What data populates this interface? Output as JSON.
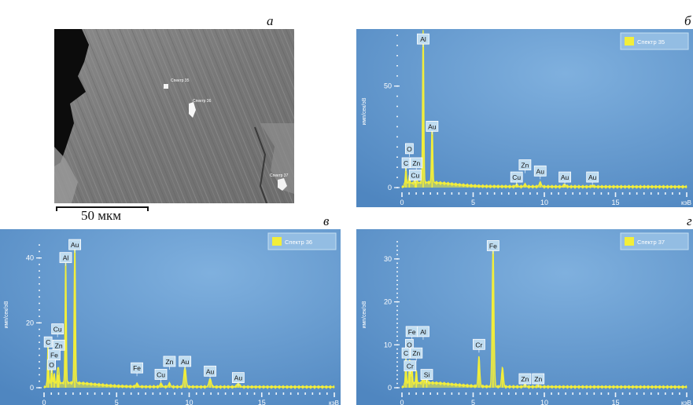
{
  "panels": {
    "a": {
      "letter": "а"
    },
    "b": {
      "letter": "б"
    },
    "v": {
      "letter": "в"
    },
    "g": {
      "letter": "г"
    }
  },
  "sem_image": {
    "scale_label": "50 мкм",
    "spot_labels": [
      "Спектр 35",
      "Спектр 36",
      "Спектр 37"
    ]
  },
  "colors": {
    "plot_bg_light": "#7fb0de",
    "plot_bg_dark": "#4f86c0",
    "spectrum_line": "#f2ee3a",
    "legend_swatch": "#f2ee3a",
    "label_box": "#bfdcf0",
    "axis_text": "#ffffff"
  },
  "chart_data": [
    {
      "panel": "б",
      "type": "line",
      "legend": "Спектр 35",
      "ylabel": "имп/сек/эВ",
      "xlabel": "кэВ",
      "xlim": [
        0,
        20
      ],
      "ylim": [
        0,
        75
      ],
      "xticks": [
        0,
        5,
        10,
        15
      ],
      "yticks": [
        0,
        50
      ],
      "peaks": [
        {
          "label": "C",
          "x": 0.28,
          "y": 8
        },
        {
          "label": "O",
          "x": 0.52,
          "y": 4
        },
        {
          "label": "Cu",
          "x": 0.93,
          "y": 3
        },
        {
          "label": "Zn",
          "x": 1.01,
          "y": 3
        },
        {
          "label": "Al",
          "x": 1.49,
          "y": 75
        },
        {
          "label": "Au",
          "x": 2.12,
          "y": 29
        },
        {
          "label": "Cu",
          "x": 8.05,
          "y": 1
        },
        {
          "label": "Zn",
          "x": 8.64,
          "y": 1
        },
        {
          "label": "Au",
          "x": 9.71,
          "y": 2
        },
        {
          "label": "Au",
          "x": 11.44,
          "y": 1
        },
        {
          "label": "Au",
          "x": 13.38,
          "y": 0.5
        }
      ],
      "peak_labels": [
        {
          "text": "Al",
          "x": 1.49,
          "y": 73
        },
        {
          "text": "Au",
          "x": 2.12,
          "y": 30
        },
        {
          "text": "O",
          "x": 0.52,
          "y": 19
        },
        {
          "text": "C",
          "x": 0.28,
          "y": 12
        },
        {
          "text": "Zn",
          "x": 1.01,
          "y": 12
        },
        {
          "text": "Cu",
          "x": 0.93,
          "y": 6
        },
        {
          "text": "Zn",
          "x": 8.64,
          "y": 11
        },
        {
          "text": "Au",
          "x": 9.71,
          "y": 8
        },
        {
          "text": "Cu",
          "x": 8.05,
          "y": 5
        },
        {
          "text": "Au",
          "x": 11.44,
          "y": 5
        },
        {
          "text": "Au",
          "x": 13.38,
          "y": 5
        }
      ]
    },
    {
      "panel": "в",
      "type": "line",
      "legend": "Спектр 36",
      "ylabel": "имп/сек/эВ",
      "xlabel": "кэВ",
      "xlim": [
        0,
        20
      ],
      "ylim": [
        0,
        45
      ],
      "xticks": [
        0,
        5,
        10,
        15
      ],
      "yticks": [
        0,
        20,
        40
      ],
      "peaks": [
        {
          "label": "C",
          "x": 0.28,
          "y": 13
        },
        {
          "label": "O",
          "x": 0.52,
          "y": 6
        },
        {
          "label": "Fe",
          "x": 0.7,
          "y": 3
        },
        {
          "label": "Cu",
          "x": 0.93,
          "y": 4
        },
        {
          "label": "Zn",
          "x": 1.01,
          "y": 4
        },
        {
          "label": "Al",
          "x": 1.49,
          "y": 38
        },
        {
          "label": "Au",
          "x": 2.12,
          "y": 43
        },
        {
          "label": "Fe",
          "x": 6.4,
          "y": 1
        },
        {
          "label": "Cu",
          "x": 8.05,
          "y": 1
        },
        {
          "label": "Zn",
          "x": 8.64,
          "y": 1
        },
        {
          "label": "Au",
          "x": 9.71,
          "y": 6
        },
        {
          "label": "Au",
          "x": 11.44,
          "y": 2.5
        },
        {
          "label": "Au",
          "x": 13.38,
          "y": 1
        }
      ],
      "peak_labels": [
        {
          "text": "Au",
          "x": 2.12,
          "y": 44
        },
        {
          "text": "Al",
          "x": 1.49,
          "y": 40
        },
        {
          "text": "Cu",
          "x": 0.93,
          "y": 18
        },
        {
          "text": "C",
          "x": 0.28,
          "y": 14
        },
        {
          "text": "Zn",
          "x": 1.01,
          "y": 13
        },
        {
          "text": "Fe",
          "x": 0.7,
          "y": 10
        },
        {
          "text": "O",
          "x": 0.52,
          "y": 7
        },
        {
          "text": "Fe",
          "x": 6.4,
          "y": 6
        },
        {
          "text": "Zn",
          "x": 8.64,
          "y": 8
        },
        {
          "text": "Au",
          "x": 9.71,
          "y": 8
        },
        {
          "text": "Cu",
          "x": 8.05,
          "y": 4
        },
        {
          "text": "Au",
          "x": 11.44,
          "y": 5
        },
        {
          "text": "Au",
          "x": 13.38,
          "y": 3
        }
      ]
    },
    {
      "panel": "г",
      "type": "line",
      "legend": "Спектр 37",
      "ylabel": "имп/сек/эВ",
      "xlabel": "кэВ",
      "xlim": [
        0,
        20
      ],
      "ylim": [
        0,
        34
      ],
      "xticks": [
        0,
        5,
        10,
        15
      ],
      "yticks": [
        0,
        10,
        20,
        30
      ],
      "peaks": [
        {
          "label": "C",
          "x": 0.28,
          "y": 6
        },
        {
          "label": "O",
          "x": 0.52,
          "y": 4
        },
        {
          "label": "Cr",
          "x": 0.57,
          "y": 3
        },
        {
          "label": "Fe",
          "x": 0.7,
          "y": 4
        },
        {
          "label": "Zn",
          "x": 1.01,
          "y": 3
        },
        {
          "label": "Al",
          "x": 1.49,
          "y": 3
        },
        {
          "label": "Si",
          "x": 1.74,
          "y": 2
        },
        {
          "label": "Cr",
          "x": 5.41,
          "y": 7
        },
        {
          "label": "Fe",
          "x": 6.4,
          "y": 33
        },
        {
          "label": "Fe",
          "x": 7.06,
          "y": 4.5
        },
        {
          "label": "Zn",
          "x": 8.64,
          "y": 0.5
        },
        {
          "label": "Zn",
          "x": 9.57,
          "y": 0.3
        }
      ],
      "peak_labels": [
        {
          "text": "Fe",
          "x": 6.4,
          "y": 33
        },
        {
          "text": "Fe",
          "x": 0.7,
          "y": 13
        },
        {
          "text": "Al",
          "x": 1.49,
          "y": 13
        },
        {
          "text": "O",
          "x": 0.52,
          "y": 10
        },
        {
          "text": "C",
          "x": 0.28,
          "y": 8
        },
        {
          "text": "Zn",
          "x": 1.01,
          "y": 8
        },
        {
          "text": "Cr",
          "x": 0.57,
          "y": 5
        },
        {
          "text": "Si",
          "x": 1.74,
          "y": 3
        },
        {
          "text": "Cr",
          "x": 5.41,
          "y": 10
        },
        {
          "text": "Zn",
          "x": 8.64,
          "y": 2
        },
        {
          "text": "Zn",
          "x": 9.57,
          "y": 2
        }
      ]
    }
  ]
}
